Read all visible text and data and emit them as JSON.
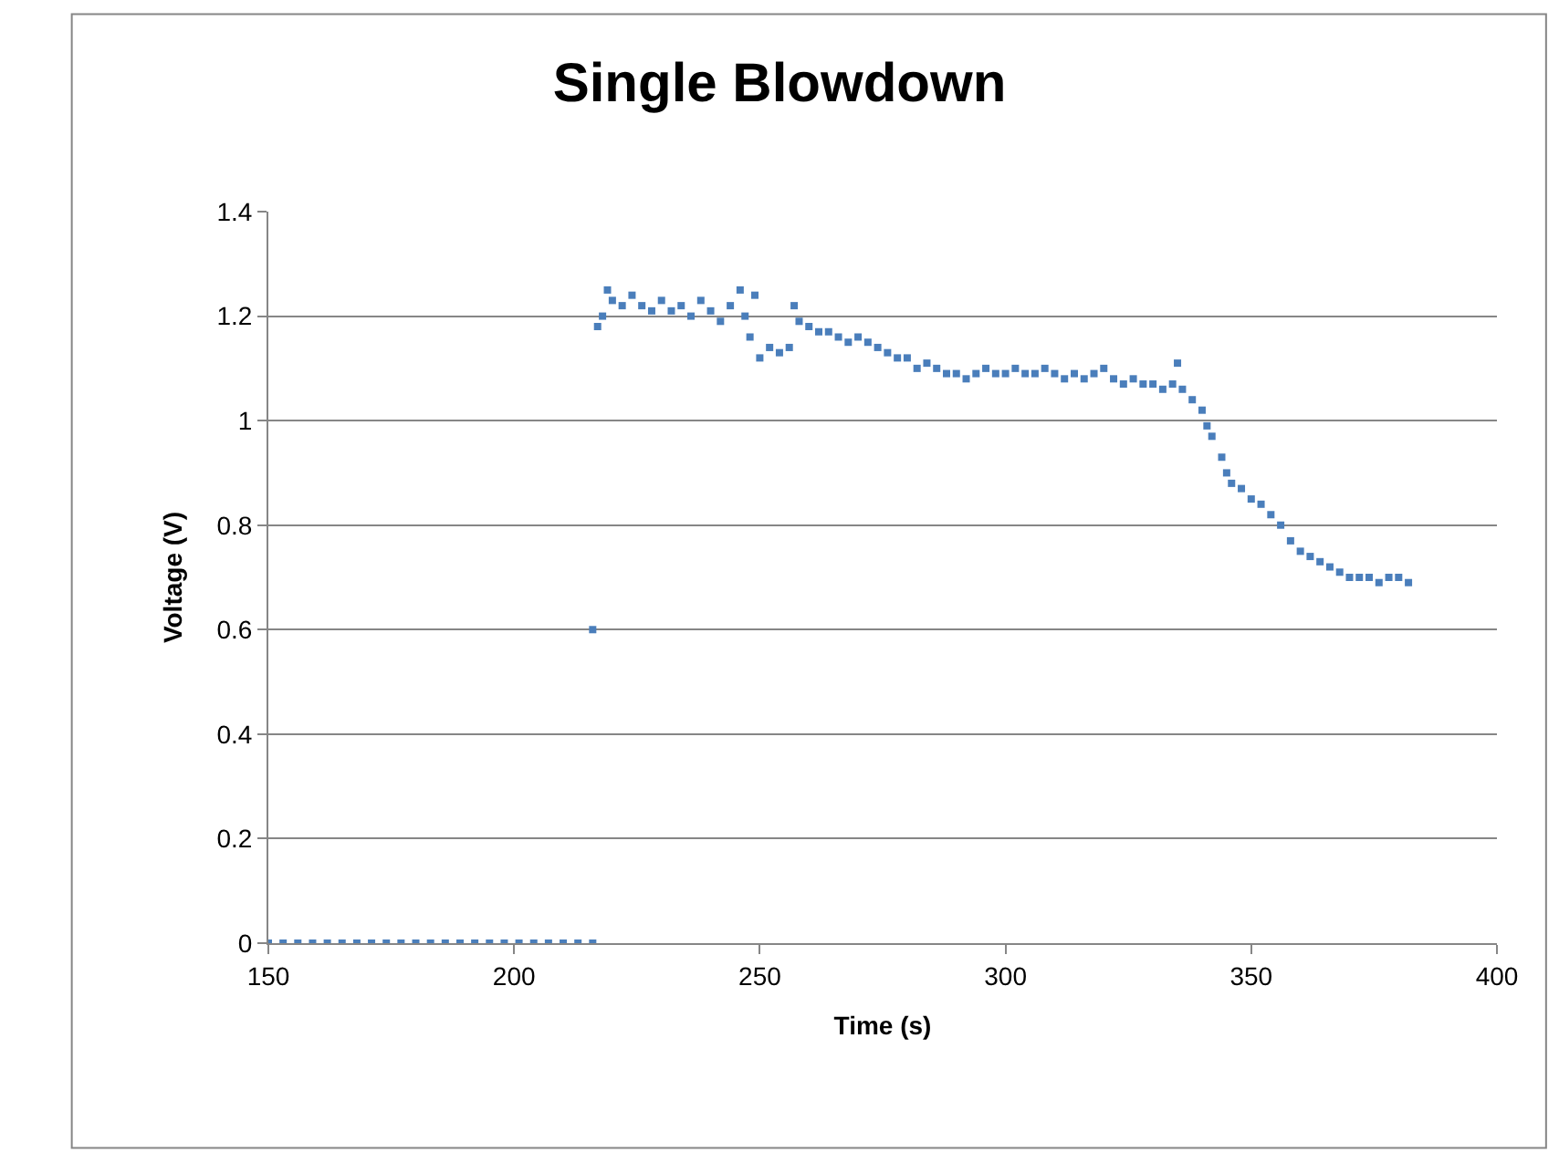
{
  "chart_data": {
    "type": "scatter",
    "title": "Single Blowdown",
    "xlabel": "Time (s)",
    "ylabel": "Voltage (V)",
    "xlim": [
      150,
      400
    ],
    "xticks": [
      150,
      200,
      250,
      300,
      350,
      400
    ],
    "ylim": [
      0,
      1.4
    ],
    "yticks": [
      0,
      0.2,
      0.4,
      0.6,
      0.8,
      1,
      1.2,
      1.4
    ],
    "grid": "y",
    "marker": "square",
    "series": [
      {
        "color": "#4a7ebb",
        "x": [
          150,
          153,
          156,
          159,
          162,
          165,
          168,
          171,
          174,
          177,
          180,
          183,
          186,
          189,
          192,
          195,
          198,
          201,
          204,
          207,
          210,
          213,
          216,
          216,
          217,
          218,
          219,
          220,
          222,
          224,
          226,
          228,
          230,
          232,
          234,
          236,
          238,
          240,
          242,
          244,
          246,
          247,
          248,
          249,
          250,
          252,
          254,
          256,
          257,
          258,
          260,
          262,
          264,
          266,
          268,
          270,
          272,
          274,
          276,
          278,
          280,
          282,
          284,
          286,
          288,
          290,
          292,
          294,
          296,
          298,
          300,
          302,
          304,
          306,
          308,
          310,
          312,
          314,
          316,
          318,
          320,
          322,
          324,
          326,
          328,
          330,
          332,
          334,
          335,
          336,
          338,
          340,
          341,
          342,
          344,
          345,
          346,
          348,
          350,
          352,
          354,
          356,
          358,
          360,
          362,
          364,
          366,
          368,
          370,
          372,
          374,
          376,
          378,
          380,
          382
        ],
        "values": [
          0,
          0,
          0,
          0,
          0,
          0,
          0,
          0,
          0,
          0,
          0,
          0,
          0,
          0,
          0,
          0,
          0,
          0,
          0,
          0,
          0,
          0,
          0,
          0.6,
          1.18,
          1.2,
          1.25,
          1.23,
          1.22,
          1.24,
          1.22,
          1.21,
          1.23,
          1.21,
          1.22,
          1.2,
          1.23,
          1.21,
          1.19,
          1.22,
          1.25,
          1.2,
          1.16,
          1.24,
          1.12,
          1.14,
          1.13,
          1.14,
          1.22,
          1.19,
          1.18,
          1.17,
          1.17,
          1.16,
          1.15,
          1.16,
          1.15,
          1.14,
          1.13,
          1.12,
          1.12,
          1.1,
          1.11,
          1.1,
          1.09,
          1.09,
          1.08,
          1.09,
          1.1,
          1.09,
          1.09,
          1.1,
          1.09,
          1.09,
          1.1,
          1.09,
          1.08,
          1.09,
          1.08,
          1.09,
          1.1,
          1.08,
          1.07,
          1.08,
          1.07,
          1.07,
          1.06,
          1.07,
          1.11,
          1.06,
          1.04,
          1.02,
          0.99,
          0.97,
          0.93,
          0.9,
          0.88,
          0.87,
          0.85,
          0.84,
          0.82,
          0.8,
          0.77,
          0.75,
          0.74,
          0.73,
          0.72,
          0.71,
          0.7,
          0.7,
          0.7,
          0.69,
          0.7,
          0.7,
          0.69
        ]
      }
    ]
  }
}
